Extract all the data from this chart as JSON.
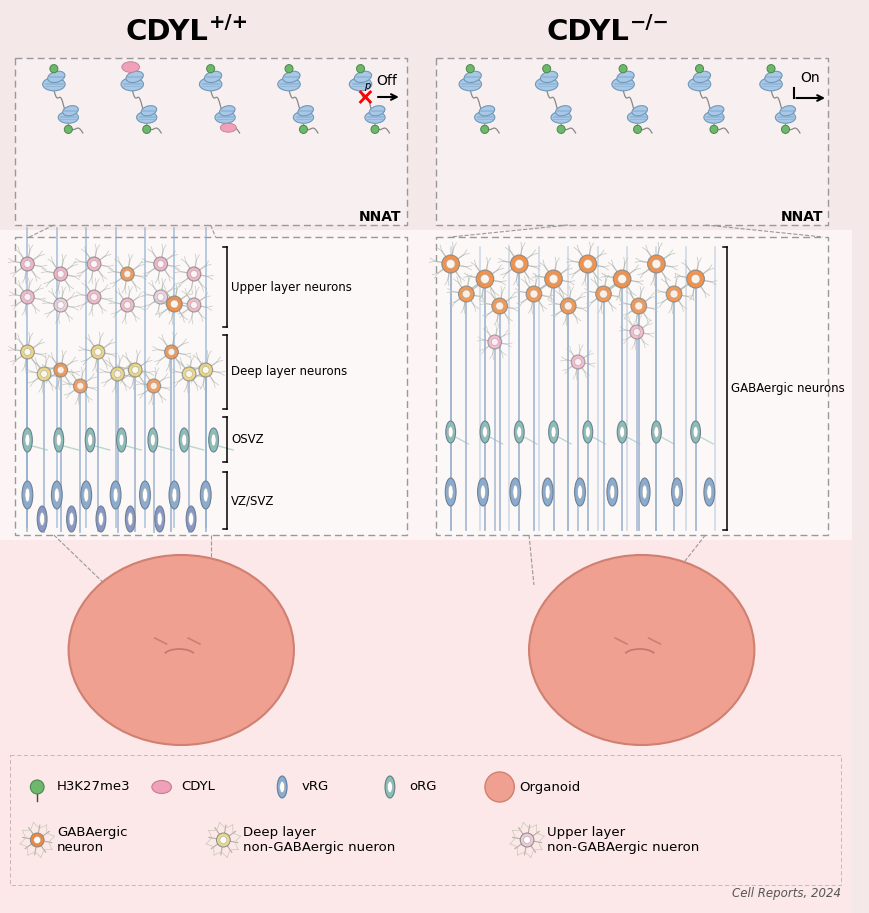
{
  "bg_color": "#f5e8e8",
  "panel_bg": "#fdf5f5",
  "green_color": "#6db86d",
  "pink_color": "#f0a0b8",
  "blue_nuc": "#a8c8e8",
  "blue_nuc_edge": "#7098b8",
  "orange_neuron": "#f0883a",
  "pink_neuron": "#f0a8c0",
  "yellow_neuron": "#e8d070",
  "blue_vRG": "#8aacd0",
  "teal_oRG": "#88c0b8",
  "organoid_color": "#f0a090",
  "organoid_edge": "#d08070",
  "dna_color": "#888888",
  "label_upper": "Upper layer neurons",
  "label_deep": "Deep layer neurons",
  "label_osvz": "OSVZ",
  "label_vz": "VZ/SVZ",
  "label_gaba": "GABAergic neurons",
  "citation": "Cell Reports, 2024"
}
